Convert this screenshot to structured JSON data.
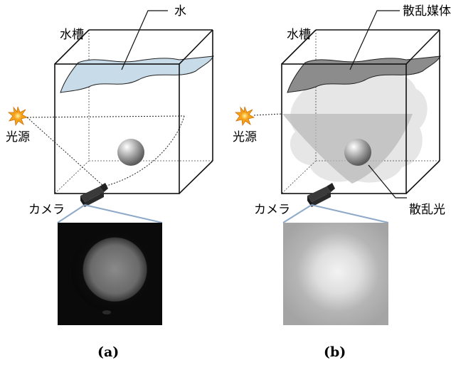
{
  "panel_a": {
    "water_label": "水",
    "tank_label": "水槽",
    "light_label": "光源",
    "camera_label": "カメラ",
    "caption": "(a)"
  },
  "panel_b": {
    "medium_label": "散乱媒体",
    "tank_label": "水槽",
    "light_label": "光源",
    "camera_label": "カメラ",
    "scatter_label": "散乱光",
    "caption": "(b)"
  },
  "colors": {
    "water": "#c8dbe8",
    "medium": "#8c8c8c",
    "sun": "#f5a31a",
    "scatter_cloud": "#e6e6e6"
  }
}
